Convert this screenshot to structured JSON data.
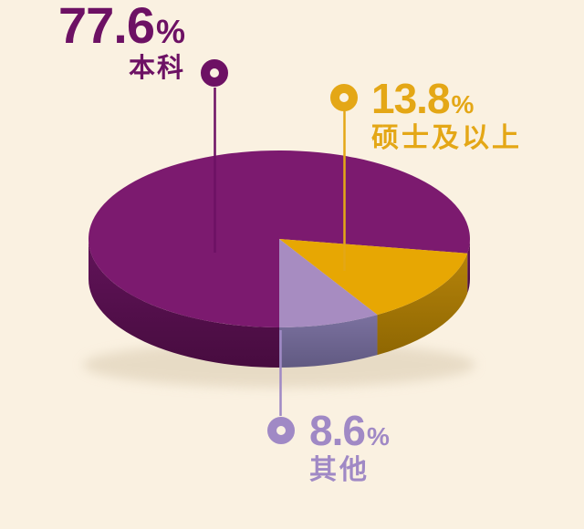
{
  "background_color": "#FAF1E1",
  "chart_data": {
    "type": "pie",
    "projection": "3d",
    "unit": "%",
    "start_angle_deg": 270,
    "direction": "clockwise",
    "legend_position": "callout-labels",
    "slices": [
      {
        "id": "bachelor",
        "label": "本科",
        "value": 77.6,
        "value_text": "77.6",
        "color_top": "#7C1A6F",
        "color_side_top": "#62135A",
        "color_side_bottom": "#470C3F",
        "label_color": "#6D1164"
      },
      {
        "id": "masters",
        "label": "硕士及以上",
        "value": 13.8,
        "value_text": "13.8",
        "color_top": "#E7A703",
        "color_side_top": "#B5830A",
        "color_side_bottom": "#8F6702",
        "label_color": "#E4A716"
      },
      {
        "id": "others",
        "label": "其他",
        "value": 8.6,
        "value_text": "8.6",
        "color_top": "#A78CC1",
        "color_side_top": "#7B719F",
        "color_side_bottom": "#615A82",
        "label_color": "#A089C5"
      }
    ]
  }
}
